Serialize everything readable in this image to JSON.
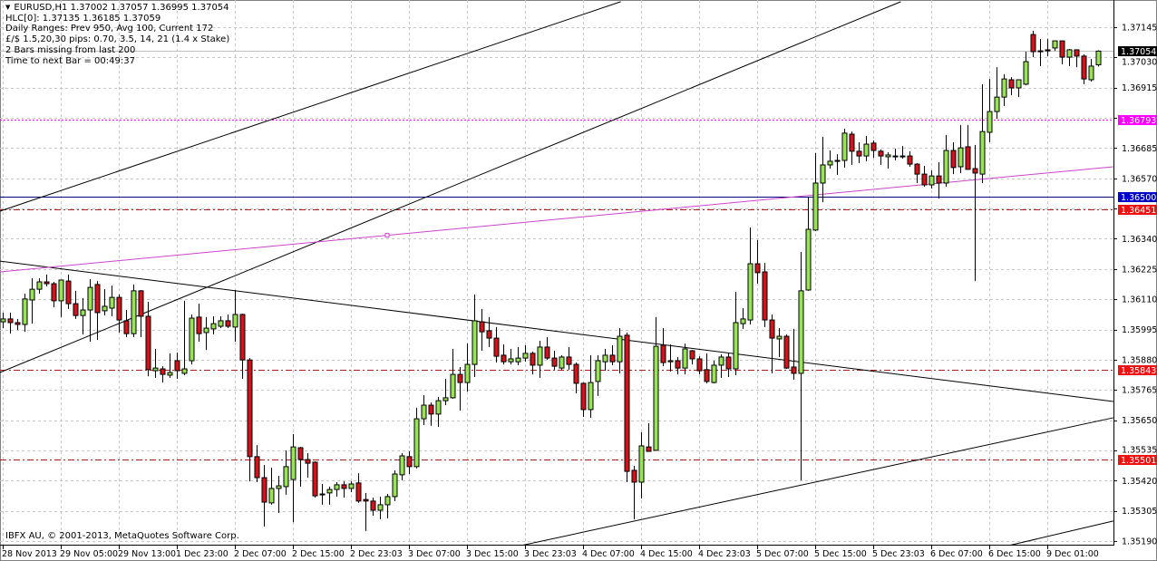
{
  "header": {
    "title_line": "EURUSD,H1  1.37002 1.37057 1.36995 1.37054",
    "lines": [
      "HLC[0]: 1.37135 1.36185 1.37059",
      "Daily Ranges:  Prev 950,  Avg 100,  Current 172",
      "£/$ 1.5,20,30 pips: 0.70, 3.5, 14, 21 (1.4 x Stake)",
      "2 Bars missing from last 200",
      "Time to next Bar = 00:49:37"
    ]
  },
  "footer": {
    "copyright": "IBFX AU, © 2001-2013, MetaQuotes Software Corp."
  },
  "colors": {
    "bull": "#98e455",
    "bear": "#d0141c",
    "grid": "#c6c6c6",
    "trendline": "#000000",
    "pink_line": "#cc44cc",
    "bid_line": "#c0c0c0"
  },
  "chart_data": {
    "type": "candlestick",
    "symbol": "EURUSD",
    "timeframe": "H1",
    "ylim": [
      1.3515,
      1.37245
    ],
    "y_ticks": [
      "1.37145",
      "1.37030",
      "1.36915",
      "1.36685",
      "1.36570",
      "1.36340",
      "1.36225",
      "1.36110",
      "1.35995",
      "1.35880",
      "1.35765",
      "1.35650",
      "1.35535",
      "1.35420",
      "1.35305",
      "1.35190"
    ],
    "grid_prices": [
      1.37145,
      1.3703,
      1.36915,
      1.368,
      1.36685,
      1.3657,
      1.36455,
      1.3634,
      1.36225,
      1.3611,
      1.35995,
      1.3588,
      1.35765,
      1.3565,
      1.35535,
      1.3542,
      1.35305,
      1.3519
    ],
    "x_ticks": [
      {
        "bar": 0,
        "label": "28 Nov 2013"
      },
      {
        "bar": 8,
        "label": "29 Nov 05:00"
      },
      {
        "bar": 16,
        "label": "29 Nov 13:00"
      },
      {
        "bar": 24,
        "label": "1 Dec 23:00"
      },
      {
        "bar": 32,
        "label": "2 Dec 07:00"
      },
      {
        "bar": 40,
        "label": "2 Dec 15:00"
      },
      {
        "bar": 48,
        "label": "2 Dec 23:03"
      },
      {
        "bar": 56,
        "label": "3 Dec 07:00"
      },
      {
        "bar": 64,
        "label": "3 Dec 15:00"
      },
      {
        "bar": 72,
        "label": "3 Dec 23:03"
      },
      {
        "bar": 80,
        "label": "4 Dec 07:00"
      },
      {
        "bar": 88,
        "label": "4 Dec 15:00"
      },
      {
        "bar": 96,
        "label": "4 Dec 23:03"
      },
      {
        "bar": 104,
        "label": "5 Dec 07:00"
      },
      {
        "bar": 112,
        "label": "5 Dec 15:00"
      },
      {
        "bar": 120,
        "label": "5 Dec 23:03"
      },
      {
        "bar": 128,
        "label": "6 Dec 07:00"
      },
      {
        "bar": 136,
        "label": "6 Dec 15:00"
      },
      {
        "bar": 144,
        "label": "9 Dec 01:00"
      }
    ],
    "price_levels": [
      {
        "price": 1.37054,
        "label": "1.37054",
        "color": "#000000",
        "style": "bid"
      },
      {
        "price": 1.36793,
        "label": "1.36793",
        "color": "#ff00ff",
        "style": "dotted"
      },
      {
        "price": 1.365,
        "label": "1.36500",
        "color": "#0000c8",
        "line_color": "#000080",
        "style": "solid"
      },
      {
        "price": 1.36451,
        "label": "1.36451",
        "color": "#ee1111",
        "line_color": "#b01c1c",
        "style": "dashdot"
      },
      {
        "price": 1.35843,
        "label": "1.35843",
        "color": "#ee1111",
        "line_color": "#b01c1c",
        "style": "dashdot"
      },
      {
        "price": 1.35501,
        "label": "1.35501",
        "color": "#ee1111",
        "line_color": "#b01c1c",
        "style": "dashdot"
      }
    ],
    "trendlines": [
      {
        "from": [
          -0.4,
          1.36445
        ],
        "to": [
          85.2,
          1.37242
        ],
        "color": "#000000"
      },
      {
        "from": [
          -0.4,
          1.35831
        ],
        "to": [
          123.8,
          1.37242
        ],
        "color": "#000000"
      },
      {
        "from": [
          -0.4,
          1.36255
        ],
        "to": [
          153.1,
          1.35721
        ],
        "color": "#000000"
      },
      {
        "from": [
          71.5,
          1.35173
        ],
        "to": [
          153.1,
          1.35659
        ],
        "color": "#000000"
      },
      {
        "from": [
          129.6,
          1.35114
        ],
        "to": [
          153.1,
          1.35266
        ],
        "color": "#000000"
      },
      {
        "from": [
          -0.4,
          1.36214
        ],
        "to": [
          153.1,
          1.36614
        ],
        "color": "#cc44cc",
        "anchor": [
          53,
          1.36352
        ]
      }
    ],
    "ohlc": [
      [
        1.36024,
        1.36059,
        1.36,
        1.36035
      ],
      [
        1.36035,
        1.36059,
        1.35979,
        1.36021
      ],
      [
        1.36021,
        1.36035,
        1.35993,
        1.36014
      ],
      [
        1.36014,
        1.36131,
        1.35986,
        1.36111
      ],
      [
        1.36107,
        1.3619,
        1.36017,
        1.36148
      ],
      [
        1.36148,
        1.3619,
        1.36131,
        1.36176
      ],
      [
        1.36176,
        1.36204,
        1.36159,
        1.36169
      ],
      [
        1.36169,
        1.36176,
        1.36079,
        1.36104
      ],
      [
        1.36104,
        1.36183,
        1.36042,
        1.36183
      ],
      [
        1.36179,
        1.36204,
        1.36073,
        1.36093
      ],
      [
        1.36093,
        1.36142,
        1.36035,
        1.36048
      ],
      [
        1.36048,
        1.36114,
        1.35976,
        1.36069
      ],
      [
        1.36069,
        1.36186,
        1.35948,
        1.36155
      ],
      [
        1.36166,
        1.36179,
        1.35955,
        1.36059
      ],
      [
        1.36066,
        1.36148,
        1.36048,
        1.36083
      ],
      [
        1.36076,
        1.36162,
        1.36045,
        1.36117
      ],
      [
        1.36117,
        1.36128,
        1.35983,
        1.36031
      ],
      [
        1.36028,
        1.36069,
        1.35966,
        1.35979
      ],
      [
        1.35979,
        1.36166,
        1.35966,
        1.36142
      ],
      [
        1.36142,
        1.36145,
        1.35966,
        1.36045
      ],
      [
        1.36045,
        1.361,
        1.35817,
        1.35842
      ],
      [
        1.35838,
        1.35921,
        1.35811,
        1.35848
      ],
      [
        1.35845,
        1.35855,
        1.35793,
        1.35824
      ],
      [
        1.35821,
        1.35904,
        1.35811,
        1.35831
      ],
      [
        1.35876,
        1.35907,
        1.35807,
        1.35838
      ],
      [
        1.35828,
        1.36104,
        1.35821,
        1.35845
      ],
      [
        1.35876,
        1.36052,
        1.35862,
        1.36038
      ],
      [
        1.36042,
        1.36093,
        1.35948,
        1.35979
      ],
      [
        1.35983,
        1.36042,
        1.35917,
        1.36
      ],
      [
        1.35997,
        1.36045,
        1.35976,
        1.36017
      ],
      [
        1.36007,
        1.36045,
        1.36,
        1.36028
      ],
      [
        1.36028,
        1.36052,
        1.36,
        1.36007
      ],
      [
        1.36004,
        1.36145,
        1.35948,
        1.36052
      ],
      [
        1.36052,
        1.36055,
        1.35807,
        1.35879
      ],
      [
        1.35879,
        1.35886,
        1.35417,
        1.35511
      ],
      [
        1.35511,
        1.35555,
        1.35414,
        1.35431
      ],
      [
        1.35431,
        1.35479,
        1.35245,
        1.35338
      ],
      [
        1.35335,
        1.35469,
        1.35328,
        1.3539
      ],
      [
        1.3539,
        1.35438,
        1.35297,
        1.354
      ],
      [
        1.35397,
        1.35535,
        1.35366,
        1.35473
      ],
      [
        1.35424,
        1.35597,
        1.35262,
        1.35548
      ],
      [
        1.35545,
        1.35548,
        1.35397,
        1.355
      ],
      [
        1.355,
        1.35524,
        1.35431,
        1.35486
      ],
      [
        1.3549,
        1.35493,
        1.35355,
        1.35362
      ],
      [
        1.35369,
        1.35407,
        1.35328,
        1.35366
      ],
      [
        1.35373,
        1.35397,
        1.35328,
        1.35386
      ],
      [
        1.35386,
        1.35414,
        1.35359,
        1.35404
      ],
      [
        1.35404,
        1.35417,
        1.35355,
        1.3539
      ],
      [
        1.3539,
        1.35417,
        1.35376,
        1.35407
      ],
      [
        1.35411,
        1.35448,
        1.35335,
        1.35342
      ],
      [
        1.35348,
        1.35373,
        1.35228,
        1.35342
      ],
      [
        1.35342,
        1.35355,
        1.35286,
        1.35307
      ],
      [
        1.35307,
        1.35359,
        1.35273,
        1.35328
      ],
      [
        1.35328,
        1.35369,
        1.35276,
        1.35359
      ],
      [
        1.35359,
        1.35459,
        1.35342,
        1.35445
      ],
      [
        1.35442,
        1.35524,
        1.35421,
        1.35514
      ],
      [
        1.35511,
        1.35531,
        1.35445,
        1.35473
      ],
      [
        1.35473,
        1.35697,
        1.35466,
        1.35655
      ],
      [
        1.35655,
        1.35745,
        1.35631,
        1.35707
      ],
      [
        1.35707,
        1.35717,
        1.35628,
        1.35673
      ],
      [
        1.35673,
        1.35738,
        1.35624,
        1.35724
      ],
      [
        1.35724,
        1.35807,
        1.35707,
        1.35735
      ],
      [
        1.35735,
        1.35921,
        1.35731,
        1.35824
      ],
      [
        1.35824,
        1.35852,
        1.35686,
        1.35793
      ],
      [
        1.35793,
        1.35941,
        1.35759,
        1.35862
      ],
      [
        1.35862,
        1.36128,
        1.35814,
        1.36028
      ],
      [
        1.36024,
        1.36073,
        1.35914,
        1.35986
      ],
      [
        1.3599,
        1.36042,
        1.35928,
        1.35962
      ],
      [
        1.35962,
        1.36004,
        1.35869,
        1.35893
      ],
      [
        1.35897,
        1.35938,
        1.35862,
        1.35872
      ],
      [
        1.35872,
        1.35921,
        1.35862,
        1.35883
      ],
      [
        1.35872,
        1.35928,
        1.35859,
        1.35886
      ],
      [
        1.35886,
        1.35935,
        1.35872,
        1.35904
      ],
      [
        1.35904,
        1.35911,
        1.35824,
        1.35859
      ],
      [
        1.35859,
        1.35952,
        1.35811,
        1.35928
      ],
      [
        1.35928,
        1.35966,
        1.35879,
        1.35886
      ],
      [
        1.35886,
        1.35914,
        1.35842,
        1.35855
      ],
      [
        1.35848,
        1.35897,
        1.35842,
        1.3589
      ],
      [
        1.3589,
        1.35928,
        1.35842,
        1.35862
      ],
      [
        1.35862,
        1.35869,
        1.35752,
        1.3579
      ],
      [
        1.3579,
        1.35793,
        1.35662,
        1.3569
      ],
      [
        1.3569,
        1.35897,
        1.35659,
        1.35793
      ],
      [
        1.35797,
        1.35897,
        1.35742,
        1.35876
      ],
      [
        1.35872,
        1.35921,
        1.35838,
        1.35897
      ],
      [
        1.35897,
        1.35935,
        1.35859,
        1.35872
      ],
      [
        1.35872,
        1.36,
        1.35828,
        1.35969
      ],
      [
        1.35973,
        1.35983,
        1.35414,
        1.35455
      ],
      [
        1.35459,
        1.35476,
        1.35273,
        1.35414
      ],
      [
        1.35414,
        1.35604,
        1.35352,
        1.35552
      ],
      [
        1.35548,
        1.35638,
        1.35531,
        1.35531
      ],
      [
        1.35535,
        1.36042,
        1.35535,
        1.35931
      ],
      [
        1.35935,
        1.36,
        1.35855,
        1.35869
      ],
      [
        1.35872,
        1.35938,
        1.35835,
        1.35876
      ],
      [
        1.35876,
        1.3589,
        1.35824,
        1.35848
      ],
      [
        1.35848,
        1.35941,
        1.35824,
        1.35921
      ],
      [
        1.35914,
        1.35917,
        1.35862,
        1.35883
      ],
      [
        1.35883,
        1.35893,
        1.35824,
        1.35838
      ],
      [
        1.35842,
        1.35904,
        1.3579,
        1.35797
      ],
      [
        1.35793,
        1.35876,
        1.3579,
        1.35859
      ],
      [
        1.35859,
        1.359,
        1.35811,
        1.3589
      ],
      [
        1.3589,
        1.35907,
        1.35814,
        1.35845
      ],
      [
        1.35845,
        1.36138,
        1.35821,
        1.36021
      ],
      [
        1.36017,
        1.36076,
        1.35997,
        1.36035
      ],
      [
        1.36031,
        1.36383,
        1.36014,
        1.36245
      ],
      [
        1.36245,
        1.36335,
        1.36169,
        1.36211
      ],
      [
        1.36214,
        1.36248,
        1.36004,
        1.36031
      ],
      [
        1.36031,
        1.36052,
        1.35828,
        1.35962
      ],
      [
        1.35959,
        1.36,
        1.3589,
        1.35969
      ],
      [
        1.35969,
        1.35976,
        1.35845,
        1.35848
      ],
      [
        1.35852,
        1.35997,
        1.35804,
        1.35828
      ],
      [
        1.35828,
        1.3629,
        1.35421,
        1.36142
      ],
      [
        1.36145,
        1.365,
        1.36142,
        1.36376
      ],
      [
        1.36373,
        1.36666,
        1.36369,
        1.36552
      ],
      [
        1.36552,
        1.36728,
        1.36479,
        1.36621
      ],
      [
        1.36621,
        1.36676,
        1.36607,
        1.36635
      ],
      [
        1.36635,
        1.36662,
        1.36583,
        1.36638
      ],
      [
        1.36638,
        1.36759,
        1.36611,
        1.36742
      ],
      [
        1.36738,
        1.36748,
        1.36621,
        1.36673
      ],
      [
        1.36673,
        1.36707,
        1.36628,
        1.36655
      ],
      [
        1.36655,
        1.36731,
        1.36635,
        1.367
      ],
      [
        1.36704,
        1.36714,
        1.36648,
        1.36676
      ],
      [
        1.36673,
        1.3668,
        1.36621,
        1.36655
      ],
      [
        1.36652,
        1.36669,
        1.36607,
        1.36659
      ],
      [
        1.36655,
        1.36683,
        1.36638,
        1.36652
      ],
      [
        1.36655,
        1.36693,
        1.36645,
        1.36655
      ],
      [
        1.36655,
        1.36673,
        1.36614,
        1.36624
      ],
      [
        1.36624,
        1.36628,
        1.36552,
        1.36586
      ],
      [
        1.36586,
        1.36617,
        1.36538,
        1.36545
      ],
      [
        1.36545,
        1.366,
        1.36531,
        1.36579
      ],
      [
        1.36579,
        1.36631,
        1.36493,
        1.36552
      ],
      [
        1.36552,
        1.36735,
        1.36538,
        1.36676
      ],
      [
        1.36676,
        1.36707,
        1.36586,
        1.36611
      ],
      [
        1.36614,
        1.36773,
        1.3659,
        1.36686
      ],
      [
        1.3669,
        1.36773,
        1.36604,
        1.36604
      ],
      [
        1.36607,
        1.36697,
        1.36179,
        1.3659
      ],
      [
        1.36586,
        1.36928,
        1.36552,
        1.36748
      ],
      [
        1.36745,
        1.36948,
        1.36707,
        1.36824
      ],
      [
        1.36824,
        1.36993,
        1.36797,
        1.36879
      ],
      [
        1.36879,
        1.36966,
        1.36845,
        1.36948
      ],
      [
        1.36945,
        1.36955,
        1.36886,
        1.36914
      ],
      [
        1.36914,
        1.36945,
        1.36879,
        1.36945
      ],
      [
        1.36928,
        1.37052,
        1.36924,
        1.37014
      ],
      [
        1.37117,
        1.37131,
        1.37031,
        1.37052
      ],
      [
        1.37055,
        1.371,
        1.36997,
        1.37052
      ],
      [
        1.37059,
        1.371,
        1.37035,
        1.37055
      ],
      [
        1.37066,
        1.37093,
        1.37055,
        1.37093
      ],
      [
        1.37093,
        1.37093,
        1.37004,
        1.37031
      ],
      [
        1.37031,
        1.37062,
        1.36997,
        1.37059
      ],
      [
        1.37059,
        1.37059,
        1.36993,
        1.37035
      ],
      [
        1.37035,
        1.37042,
        1.36928,
        1.36948
      ],
      [
        1.36945,
        1.37024,
        1.36938,
        1.36997
      ],
      [
        1.37002,
        1.37057,
        1.36995,
        1.37054
      ]
    ]
  }
}
